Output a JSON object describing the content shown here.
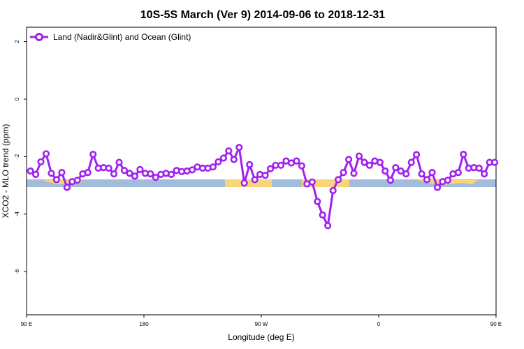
{
  "chart_data": {
    "type": "line",
    "title": "10S-5S March (Ver 9)   2014-09-06 to 2018-12-31",
    "xlabel": "Longitude (deg E)",
    "ylabel": "XCO2 - MLO trend (ppm)",
    "xlim": [
      90,
      450
    ],
    "ylim": [
      -7.5,
      2.5
    ],
    "xticks": [
      {
        "value": 90,
        "label": "90 E"
      },
      {
        "value": 180,
        "label": "180"
      },
      {
        "value": 270,
        "label": "90 W"
      },
      {
        "value": 360,
        "label": "0"
      },
      {
        "value": 450,
        "label": "90 E"
      },
      {
        "value": 540,
        "label": "180"
      }
    ],
    "yticks": [
      {
        "value": 2,
        "label": "2"
      },
      {
        "value": 0,
        "label": "0"
      },
      {
        "value": -2,
        "label": "-2"
      },
      {
        "value": -4,
        "label": "-4"
      },
      {
        "value": -6,
        "label": "-6"
      }
    ],
    "legend_position": "top-left",
    "grid": false,
    "series": [
      {
        "name": "Land (Nadir&Glint) and Ocean (Glint)",
        "color": "#a020f0",
        "x": [
          93,
          97,
          101,
          105,
          109,
          113,
          117,
          121,
          125,
          129,
          133,
          137,
          141,
          145,
          149,
          153,
          157,
          161,
          165,
          169,
          173,
          177,
          181,
          185,
          189,
          193,
          197,
          201,
          205,
          209,
          213,
          217,
          221,
          225,
          229,
          233,
          237,
          241,
          245,
          249,
          253,
          257,
          261,
          265,
          269,
          273,
          277,
          281,
          285,
          289,
          293,
          297,
          301,
          305,
          309,
          313,
          317,
          321,
          325,
          329,
          333,
          337,
          341,
          345,
          349,
          353,
          357,
          361,
          365,
          369,
          373,
          377,
          381,
          385,
          389,
          393,
          397,
          401,
          405,
          409,
          413,
          417,
          421,
          425,
          429,
          433,
          437,
          441,
          445,
          449
        ],
        "y": [
          -2.5,
          -2.62,
          -2.18,
          -1.9,
          -2.58,
          -2.8,
          -2.55,
          -3.07,
          -2.87,
          -2.82,
          -2.6,
          -2.55,
          -1.92,
          -2.4,
          -2.38,
          -2.4,
          -2.6,
          -2.2,
          -2.48,
          -2.58,
          -2.68,
          -2.45,
          -2.58,
          -2.6,
          -2.72,
          -2.62,
          -2.58,
          -2.62,
          -2.48,
          -2.52,
          -2.5,
          -2.46,
          -2.36,
          -2.4,
          -2.4,
          -2.36,
          -2.18,
          -2.05,
          -1.8,
          -2.1,
          -1.68,
          -2.92,
          -2.28,
          -2.8,
          -2.62,
          -2.65,
          -2.42,
          -2.3,
          -2.3,
          -2.15,
          -2.22,
          -2.15,
          -2.32,
          -2.95,
          -2.88,
          -3.56,
          -4.03,
          -4.4,
          -3.18,
          -2.8,
          -2.55,
          -2.1,
          -2.58,
          -1.98,
          -2.2,
          -2.3,
          -2.15,
          -2.2,
          -2.5,
          -2.82,
          -2.38,
          -2.5,
          -2.6,
          -2.2,
          -1.93,
          -2.6,
          -2.8,
          -2.55,
          -3.07,
          -2.87,
          -2.82,
          -2.6,
          -2.55,
          -1.92,
          -2.4,
          -2.38,
          -2.4,
          -2.6,
          -2.2,
          -2.2
        ]
      }
    ]
  }
}
